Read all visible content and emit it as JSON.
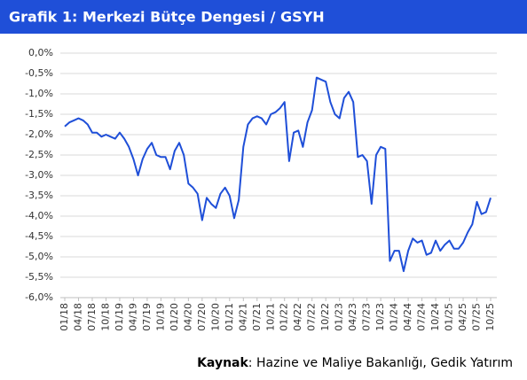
{
  "chart_data": {
    "type": "line",
    "title": "Grafik 1: Merkezi Bütçe Dengesi / GSYH",
    "source_label": "Kaynak",
    "source_text": ": Hazine ve Maliye Bakanlığı, Gedik Yatırım",
    "categories": [
      "01/18",
      null,
      null,
      "04/18",
      null,
      null,
      "07/18",
      null,
      null,
      "10/18",
      null,
      null,
      "01/19",
      null,
      null,
      "04/19",
      null,
      null,
      "07/19",
      null,
      null,
      "10/19",
      null,
      null,
      "01/20",
      null,
      null,
      "04/20",
      null,
      null,
      "07/20",
      null,
      null,
      "10/20",
      null,
      null,
      "01/21",
      null,
      null,
      "04/21",
      null,
      null,
      "07/21",
      null,
      null,
      "10/21",
      null,
      null,
      "01/22",
      null,
      null,
      "04/22",
      null,
      null,
      "07/22",
      null,
      null,
      "10/22",
      null,
      null,
      "01/23",
      null,
      null,
      "04/23",
      null,
      null,
      "07/23",
      null,
      null,
      "10/23",
      null,
      null,
      "01/24",
      null,
      null,
      "04/24",
      null,
      null,
      "07/24",
      null,
      null,
      "10/24",
      null,
      null,
      "01/25",
      null,
      null,
      "04/25",
      null,
      null,
      "07/25",
      null,
      null,
      "10/25"
    ],
    "series": [
      {
        "name": "Merkezi Bütçe Dengesi / GSYH",
        "color": "#1f4fd8",
        "values": [
          -1.8,
          -1.7,
          -1.65,
          -1.6,
          -1.65,
          -1.75,
          -1.95,
          -1.95,
          -2.05,
          -2.0,
          -2.05,
          -2.1,
          -1.95,
          -2.1,
          -2.3,
          -2.6,
          -3.0,
          -2.6,
          -2.35,
          -2.2,
          -2.5,
          -2.55,
          -2.55,
          -2.85,
          -2.4,
          -2.2,
          -2.5,
          -3.2,
          -3.3,
          -3.45,
          -4.1,
          -3.55,
          -3.7,
          -3.8,
          -3.45,
          -3.3,
          -3.5,
          -4.05,
          -3.6,
          -2.3,
          -1.75,
          -1.6,
          -1.55,
          -1.6,
          -1.75,
          -1.5,
          -1.45,
          -1.35,
          -1.2,
          -2.65,
          -1.95,
          -1.9,
          -2.3,
          -1.7,
          -1.4,
          -0.6,
          -0.65,
          -0.7,
          -1.2,
          -1.5,
          -1.6,
          -1.1,
          -0.95,
          -1.2,
          -2.55,
          -2.5,
          -2.65,
          -3.7,
          -2.5,
          -2.3,
          -2.35,
          -5.1,
          -4.85,
          -4.85,
          -5.35,
          -4.85,
          -4.55,
          -4.65,
          -4.6,
          -4.95,
          -4.9,
          -4.6,
          -4.85,
          -4.7,
          -4.6,
          -4.8,
          -4.8,
          -4.65,
          -4.4,
          -4.2,
          -3.65,
          -3.95,
          -3.9,
          -3.55
        ]
      }
    ],
    "ylim": [
      -6,
      0
    ],
    "yticks": [
      {
        "value": 0,
        "label": "0,0%"
      },
      {
        "value": -0.5,
        "label": "-0,5%"
      },
      {
        "value": -1,
        "label": "-1,0%"
      },
      {
        "value": -1.5,
        "label": "-1,5%"
      },
      {
        "value": -2,
        "label": "-2,0%"
      },
      {
        "value": -2.5,
        "label": "-2,5%"
      },
      {
        "value": -3,
        "label": "-3,0%"
      },
      {
        "value": -3.5,
        "label": "-3,5%"
      },
      {
        "value": -4,
        "label": "-4,0%"
      },
      {
        "value": -4.5,
        "label": "-4,5%"
      },
      {
        "value": -5,
        "label": "-5,0%"
      },
      {
        "value": -5.5,
        "label": "-5,5%"
      },
      {
        "value": -6,
        "label": "-6,0%"
      }
    ],
    "grid": true
  }
}
